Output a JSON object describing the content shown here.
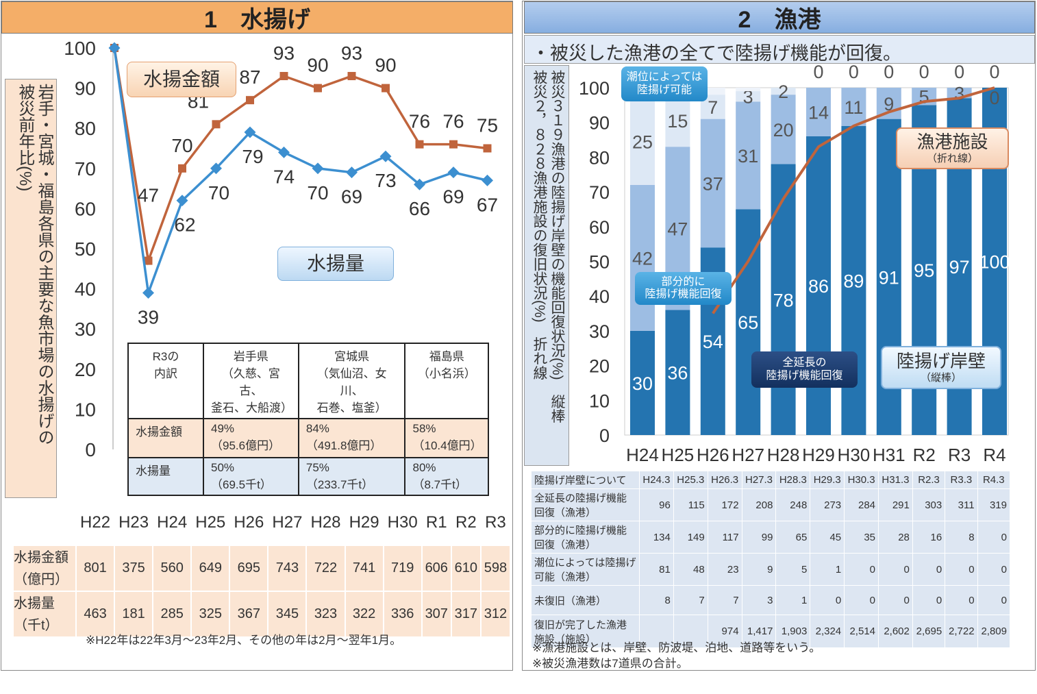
{
  "left": {
    "header": "1　水揚げ",
    "ylabel_col1": "岩手・宮城・福島各県の主要な魚市場の水揚げの",
    "ylabel_col2": "被災前年比(%)",
    "callout_amount": "水揚金額",
    "callout_volume": "水揚量",
    "breakdown_table": {
      "headers": [
        "R3の\n内訳",
        "岩手県\n（久慈、宮古、\n釜石、大船渡）",
        "宮城県\n（気仙沼、女川、\n石巻、塩釜）",
        "福島県\n（小名浜）"
      ],
      "rows": [
        {
          "label": "水揚金額",
          "cells": [
            "49%\n（95.6億円）",
            "84%\n（491.8億円）",
            "58%\n（10.4億円）"
          ]
        },
        {
          "label": "水揚量",
          "cells": [
            "50%\n（69.5千t）",
            "75%\n（233.7千t）",
            "80%\n（8.7千t）"
          ]
        }
      ]
    },
    "years": [
      "H22",
      "H23",
      "H24",
      "H25",
      "H26",
      "H27",
      "H28",
      "H29",
      "H30",
      "R1",
      "R2",
      "R3"
    ],
    "abs_rows": [
      {
        "label": "水揚金額\n（億円）",
        "values": [
          "801",
          "375",
          "560",
          "649",
          "695",
          "743",
          "722",
          "741",
          "719",
          "606",
          "610",
          "598"
        ]
      },
      {
        "label": "水揚量\n（千t）",
        "values": [
          "463",
          "181",
          "285",
          "325",
          "367",
          "345",
          "323",
          "322",
          "336",
          "307",
          "317",
          "312"
        ]
      }
    ],
    "footnote": "※H22年は22年3月～23年2月、その他の年は2月～翌年1月。"
  },
  "right": {
    "header": "2　漁港",
    "subtitle": "・被災した漁港の全てで陸揚げ機能が回復。",
    "ylabel_col1": "被災３１９漁港の陸揚げ岸壁の機能回復状況(%)　縦棒",
    "ylabel_col2": "被災２，８２８漁港施設の復旧状況(%)　折れ線",
    "callouts": {
      "tide": "潮位によっては\n陸揚げ可能",
      "partial": "部分的に\n陸揚げ機能回復",
      "full": "全延長の\n陸揚げ機能回復",
      "facility_title": "漁港施設",
      "facility_sub": "（折れ線）",
      "quay_title": "陸揚げ岸壁",
      "quay_sub": "（縦棒）"
    },
    "table": {
      "header_label": "陸揚げ岸壁について",
      "columns": [
        "H24.3",
        "H25.3",
        "H26.3",
        "H27.3",
        "H28.3",
        "H29.3",
        "H30.3",
        "H31.3",
        "R2.3",
        "R3.3",
        "R4.3"
      ],
      "rows": [
        {
          "label": "全延長の陸揚げ機能回復（漁港）",
          "values": [
            "96",
            "115",
            "172",
            "208",
            "248",
            "273",
            "284",
            "291",
            "303",
            "311",
            "319"
          ]
        },
        {
          "label": "部分的に陸揚げ機能回復（漁港）",
          "values": [
            "134",
            "149",
            "117",
            "99",
            "65",
            "45",
            "35",
            "28",
            "16",
            "8",
            "0"
          ]
        },
        {
          "label": "潮位によっては陸揚げ可能（漁港）",
          "values": [
            "81",
            "48",
            "23",
            "9",
            "5",
            "1",
            "0",
            "0",
            "0",
            "0",
            "0"
          ]
        },
        {
          "label": "未復旧（漁港）",
          "values": [
            "8",
            "7",
            "7",
            "3",
            "1",
            "0",
            "0",
            "0",
            "0",
            "0",
            "0"
          ]
        },
        {
          "label": "復旧が完了した漁港施設（施設）",
          "values": [
            "",
            "",
            "974",
            "1,417",
            "1,903",
            "2,324",
            "2,514",
            "2,602",
            "2,695",
            "2,722",
            "2,809"
          ]
        }
      ]
    },
    "notes": [
      "※漁港施設とは、岸壁、防波堤、泊地、道路等をいう。",
      "※被災漁港数は7道県の合計。"
    ]
  },
  "chart_data": [
    {
      "type": "line",
      "title": "水揚げ 被災前年比",
      "x": [
        "H22",
        "H23",
        "H24",
        "H25",
        "H26",
        "H27",
        "H28",
        "H29",
        "H30",
        "R1",
        "R2",
        "R3"
      ],
      "ylim": [
        0,
        100
      ],
      "yticks": [
        0,
        10,
        20,
        30,
        40,
        50,
        60,
        70,
        80,
        90,
        100
      ],
      "series": [
        {
          "name": "水揚金額",
          "color": "#c0643c",
          "values": [
            100,
            47,
            70,
            81,
            87,
            93,
            90,
            93,
            90,
            76,
            76,
            75
          ]
        },
        {
          "name": "水揚量",
          "color": "#3c8fd0",
          "values": [
            100,
            39,
            62,
            70,
            79,
            74,
            70,
            69,
            73,
            66,
            69,
            67
          ]
        }
      ]
    },
    {
      "type": "bar",
      "stacked": true,
      "title": "漁港 陸揚げ機能回復状況",
      "x": [
        "H24",
        "H25",
        "H26",
        "H27",
        "H28",
        "H29",
        "H30",
        "H31",
        "R2",
        "R3",
        "R4"
      ],
      "ylim": [
        0,
        100
      ],
      "yticks": [
        0,
        10,
        20,
        30,
        40,
        50,
        60,
        70,
        80,
        90,
        100
      ],
      "series": [
        {
          "name": "全延長の陸揚げ機能回復",
          "color": "#2474b0",
          "values": [
            30,
            36,
            54,
            65,
            78,
            86,
            89,
            91,
            95,
            97,
            100
          ]
        },
        {
          "name": "部分的に陸揚げ機能回復",
          "color": "#9dbde3",
          "values": [
            42,
            47,
            37,
            31,
            20,
            14,
            11,
            9,
            5,
            3,
            0
          ]
        },
        {
          "name": "潮位によっては陸揚げ可能",
          "color": "#dde8f5",
          "values": [
            25,
            15,
            7,
            3,
            2,
            0,
            0,
            0,
            0,
            0,
            0
          ]
        },
        {
          "name": "未復旧",
          "color": "#eef3fa",
          "values": [
            3,
            2,
            2,
            1,
            0,
            0,
            0,
            0,
            0,
            0,
            0
          ]
        }
      ],
      "line": {
        "name": "漁港施設",
        "color": "#c0643c",
        "values": [
          null,
          null,
          35,
          50,
          68,
          83,
          89,
          93,
          96,
          97,
          100
        ]
      }
    }
  ]
}
